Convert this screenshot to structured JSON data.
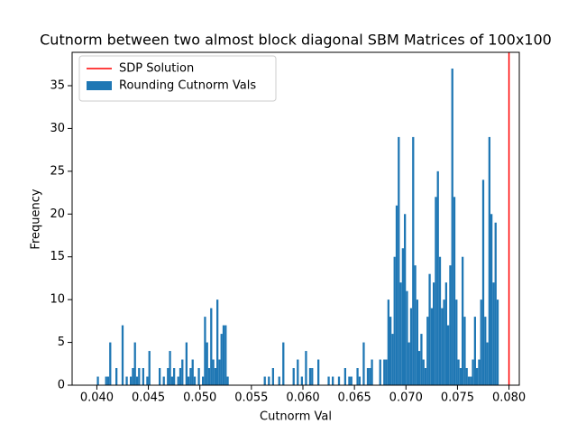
{
  "chart_data": {
    "type": "histogram",
    "title": "Cutnorm between two almost block diagonal SBM Matrices of 100x100",
    "xlabel": "Cutnorm Val",
    "ylabel": "Frequency",
    "name": "Rounding Cutnorm Vals",
    "color": "#1f77b4",
    "bins": [
      0.04,
      0.0402,
      0.0404,
      0.0406,
      0.0408,
      0.041,
      0.0412,
      0.0414,
      0.0416,
      0.0418,
      0.042,
      0.0422,
      0.0424,
      0.0426,
      0.0428,
      0.043,
      0.0432,
      0.0434,
      0.0436,
      0.0438,
      0.044,
      0.0442,
      0.0444,
      0.0446,
      0.0448,
      0.045,
      0.0452,
      0.0454,
      0.0456,
      0.0458,
      0.046,
      0.0462,
      0.0464,
      0.0466,
      0.0468,
      0.047,
      0.0472,
      0.0474,
      0.0476,
      0.0478,
      0.048,
      0.0482,
      0.0484,
      0.0486,
      0.0488,
      0.049,
      0.0492,
      0.0494,
      0.0496,
      0.0498,
      0.05,
      0.0502,
      0.0504,
      0.0506,
      0.0508,
      0.051,
      0.0512,
      0.0514,
      0.0516,
      0.0518,
      0.052,
      0.0522,
      0.0524,
      0.0526,
      0.0528,
      0.053,
      0.0532,
      0.0534,
      0.0536,
      0.0538,
      0.054,
      0.0542,
      0.0544,
      0.0546,
      0.0548,
      0.055,
      0.0552,
      0.0554,
      0.0556,
      0.0558,
      0.056,
      0.0562,
      0.0564,
      0.0566,
      0.0568,
      0.057,
      0.0572,
      0.0574,
      0.0576,
      0.0578,
      0.058,
      0.0582,
      0.0584,
      0.0586,
      0.0588,
      0.059,
      0.0592,
      0.0594,
      0.0596,
      0.0598,
      0.06,
      0.0602,
      0.0604,
      0.0606,
      0.0608,
      0.061,
      0.0612,
      0.0614,
      0.0616,
      0.0618,
      0.062,
      0.0622,
      0.0624,
      0.0626,
      0.0628,
      0.063,
      0.0632,
      0.0634,
      0.0636,
      0.0638,
      0.064,
      0.0642,
      0.0644,
      0.0646,
      0.0648,
      0.065,
      0.0652,
      0.0654,
      0.0656,
      0.0658,
      0.066,
      0.0662,
      0.0664,
      0.0666,
      0.0668,
      0.067,
      0.0672,
      0.0674,
      0.0676,
      0.0678,
      0.068,
      0.0682,
      0.0684,
      0.0686,
      0.0688,
      0.069,
      0.0692,
      0.0694,
      0.0696,
      0.0698,
      0.07,
      0.0702,
      0.0704,
      0.0706,
      0.0708,
      0.071,
      0.0712,
      0.0714,
      0.0716,
      0.0718,
      0.072,
      0.0722,
      0.0724,
      0.0726,
      0.0728,
      0.073,
      0.0732,
      0.0734,
      0.0736,
      0.0738,
      0.074,
      0.0742,
      0.0744,
      0.0746,
      0.0748,
      0.075,
      0.0752,
      0.0754,
      0.0756,
      0.0758,
      0.076,
      0.0762,
      0.0764,
      0.0766,
      0.0768,
      0.077,
      0.0772,
      0.0774,
      0.0776,
      0.0778,
      0.078,
      0.0782,
      0.0784,
      0.0786,
      0.0788,
      0.079
    ],
    "counts": [
      1,
      0,
      0,
      0,
      1,
      1,
      5,
      0,
      0,
      2,
      0,
      0,
      7,
      0,
      1,
      0,
      1,
      2,
      5,
      1,
      2,
      0,
      2,
      0,
      1,
      4,
      0,
      0,
      0,
      0,
      2,
      0,
      1,
      0,
      2,
      4,
      1,
      2,
      0,
      1,
      2,
      3,
      0,
      5,
      1,
      2,
      3,
      1,
      0,
      2,
      0,
      1,
      8,
      5,
      2,
      9,
      3,
      2,
      10,
      3,
      6,
      7,
      7,
      1,
      0,
      0,
      0,
      0,
      0,
      0,
      0,
      0,
      0,
      0,
      0,
      0,
      0,
      0,
      0,
      0,
      0,
      1,
      0,
      1,
      0,
      2,
      0,
      0,
      1,
      0,
      5,
      0,
      0,
      0,
      0,
      2,
      0,
      3,
      0,
      1,
      0,
      4,
      0,
      2,
      2,
      0,
      0,
      3,
      0,
      0,
      0,
      0,
      1,
      0,
      1,
      0,
      0,
      1,
      0,
      0,
      2,
      0,
      1,
      1,
      0,
      0,
      2,
      1,
      0,
      5,
      0,
      2,
      2,
      3,
      0,
      0,
      0,
      3,
      0,
      3,
      3,
      10,
      8,
      6,
      15,
      21,
      29,
      12,
      16,
      20,
      11,
      5,
      9,
      29,
      14,
      10,
      4,
      6,
      3,
      2,
      8,
      13,
      9,
      12,
      22,
      25,
      15,
      9,
      10,
      12,
      7,
      14,
      37,
      22,
      10,
      3,
      2,
      15,
      8,
      2,
      1,
      1,
      3,
      8,
      2,
      3,
      10,
      24,
      8,
      5,
      29,
      20,
      12,
      19,
      10
    ],
    "vlines": [
      {
        "name": "SDP Solution",
        "x": 0.08,
        "color": "#ff0000"
      }
    ],
    "xlim": [
      0.0376,
      0.081
    ],
    "ylim": [
      0,
      38.9
    ],
    "xticks": [
      {
        "value": 0.04,
        "label": "0.040"
      },
      {
        "value": 0.045,
        "label": "0.045"
      },
      {
        "value": 0.05,
        "label": "0.050"
      },
      {
        "value": 0.055,
        "label": "0.055"
      },
      {
        "value": 0.06,
        "label": "0.060"
      },
      {
        "value": 0.065,
        "label": "0.065"
      },
      {
        "value": 0.07,
        "label": "0.070"
      },
      {
        "value": 0.075,
        "label": "0.075"
      },
      {
        "value": 0.08,
        "label": "0.080"
      }
    ],
    "yticks": [
      0,
      5,
      10,
      15,
      20,
      25,
      30,
      35
    ],
    "grid": false,
    "legend": "upper-left"
  }
}
